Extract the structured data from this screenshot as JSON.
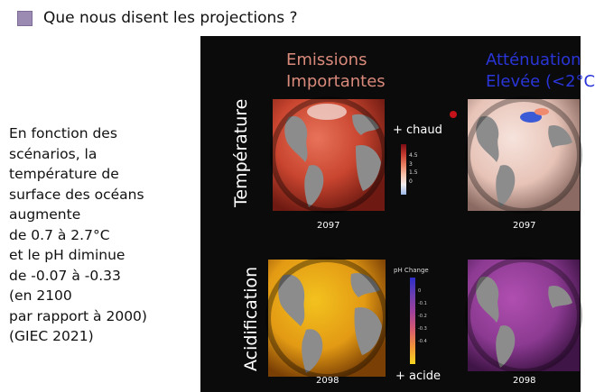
{
  "title": "Que nous disent les projections ?",
  "left_text": [
    "En fonction des",
    "scénarios, la",
    "température de",
    "surface des océans",
    "augmente",
    "de 0.7 à 2.7°C",
    "et le pH diminue",
    "de -0.07 à -0.33",
    "(en 2100",
    "par rapport à 2000)",
    "(GIEC 2021)"
  ],
  "figure": {
    "scenario_high": [
      "Emissions",
      "Importantes"
    ],
    "scenario_low": [
      "Atténuation",
      "Elevée (<2°C"
    ],
    "row_temperature": "Température",
    "row_acidification": "Acidification",
    "year_temp_high": "2097",
    "year_temp_low": "2097",
    "year_acid_high": "2098",
    "year_acid_low": "2098",
    "temp_scale_label": "+ chaud",
    "temp_ticks": [
      "4.5",
      "3",
      "1.5",
      "0"
    ],
    "ph_scale_title": "pH Change",
    "ph_ticks": [
      "0",
      "-0.1",
      "-0.2",
      "-0.3",
      "-0.4"
    ],
    "acid_scale_label": "+ acide"
  },
  "colors": {
    "bullet": "#9b8bb3",
    "emissions_heading": "#d98a7b",
    "attenuation_heading": "#2a35d8",
    "panel_bg": "#0b0b0b"
  }
}
